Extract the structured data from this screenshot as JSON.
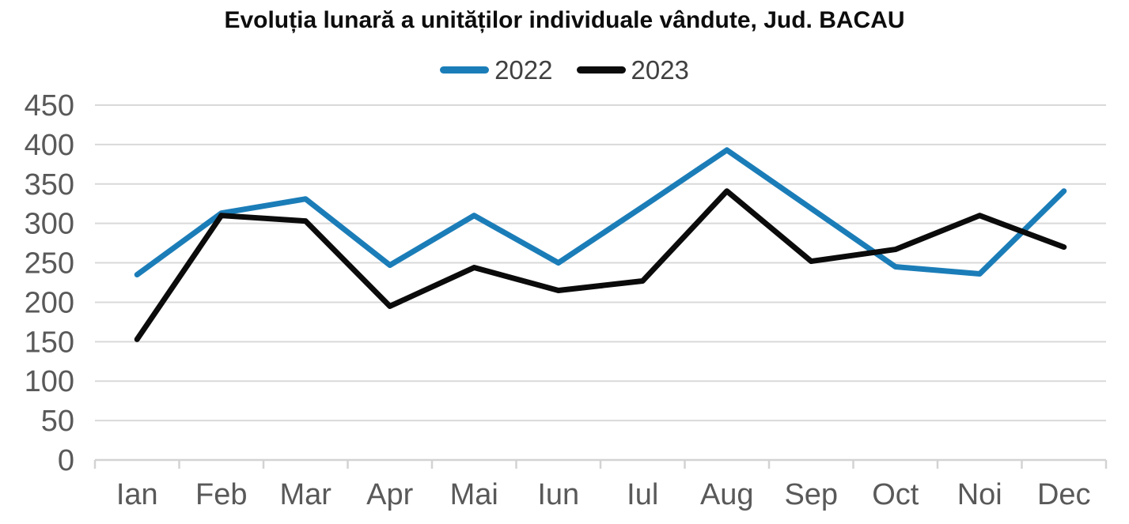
{
  "chart_data": {
    "type": "line",
    "title": "Evoluția lunară a unităților individuale vândute, Jud. BACAU",
    "categories": [
      "Ian",
      "Feb",
      "Mar",
      "Apr",
      "Mai",
      "Iun",
      "Iul",
      "Aug",
      "Sep",
      "Oct",
      "Noi",
      "Dec"
    ],
    "series": [
      {
        "name": "2022",
        "color": "#1b7db8",
        "values": [
          235,
          313,
          331,
          247,
          310,
          250,
          321,
          393,
          319,
          245,
          236,
          341
        ]
      },
      {
        "name": "2023",
        "color": "#0b0b0b",
        "values": [
          153,
          310,
          303,
          195,
          244,
          215,
          227,
          341,
          252,
          267,
          310,
          270
        ]
      }
    ],
    "ylim": [
      0,
      450
    ],
    "yticks": [
      0,
      50,
      100,
      150,
      200,
      250,
      300,
      350,
      400,
      450
    ],
    "grid": "horizontal",
    "legend_position": "top",
    "colors": {
      "gridline": "#d9d9d9",
      "axis_line": "#d3d3d3",
      "axis_label": "#595959",
      "legend_label": "#404040",
      "title": "#0d0d0d",
      "background": "#ffffff"
    }
  }
}
